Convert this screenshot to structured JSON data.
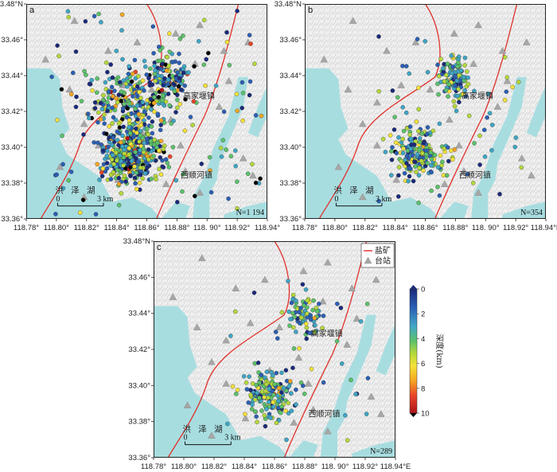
{
  "panels": [
    {
      "id": "a",
      "letter": "a",
      "count": "N=1 194",
      "n_events": 1194,
      "show_x_end_E": false
    },
    {
      "id": "b",
      "letter": "b",
      "count": "N=354",
      "n_events": 354,
      "show_x_end_E": true
    },
    {
      "id": "c",
      "letter": "c",
      "count": "N=289",
      "n_events": 289,
      "show_x_end_E": true
    }
  ],
  "x_ticks": [
    "118.78°",
    "118.80°",
    "118.82°",
    "118.84°",
    "118.86°",
    "118.88°",
    "118. 90°",
    "118.92°",
    "118.94°"
  ],
  "x_tick_last_E": "118.94°E",
  "y_ticks": [
    "33.36°",
    "33.38°",
    "33.40°",
    "33.42°",
    "33.44°",
    "33.46°"
  ],
  "y_tick_top": "33.48°N",
  "places": {
    "town1": "高家堰镇",
    "town2": "西顺河镇",
    "lake": "洪 泽 湖"
  },
  "scalebar": {
    "zero": "0",
    "km": "3 km"
  },
  "legend": {
    "salt_mine": "盐矿",
    "station": "台站"
  },
  "colorbar": {
    "title": "深度(km)",
    "ticks": [
      "0",
      "2",
      "4",
      "6",
      "8",
      "10"
    ],
    "colors": [
      "#1a2a7a",
      "#2b5fb5",
      "#3fa6c6",
      "#5cc26a",
      "#b5d93b",
      "#f5e23a",
      "#f5a623",
      "#e8452a",
      "#b0141a"
    ]
  },
  "colors": {
    "water": "#a8dde0",
    "fault": "#e0302a",
    "station": "#a6a6a6",
    "relief": "#e9e9e9"
  }
}
